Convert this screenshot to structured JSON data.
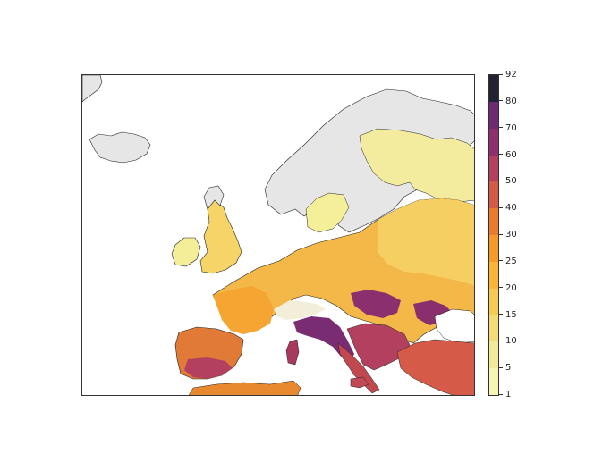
{
  "colorbar": {
    "ticks": [
      "92",
      "80",
      "70",
      "60",
      "50",
      "40",
      "30",
      "25",
      "20",
      "15",
      "10",
      "5",
      "1"
    ],
    "colors": [
      "#222234",
      "#4b2466",
      "#6d2a72",
      "#8f306e",
      "#b3405f",
      "#d45a47",
      "#ea7a2f",
      "#f59a2a",
      "#f8b538",
      "#f6cb55",
      "#f3dc78",
      "#f1ea98",
      "#f7f5b4"
    ]
  },
  "map": {
    "land_no_data_color": "#e6e6e6",
    "sea_color": "#ffffff"
  }
}
